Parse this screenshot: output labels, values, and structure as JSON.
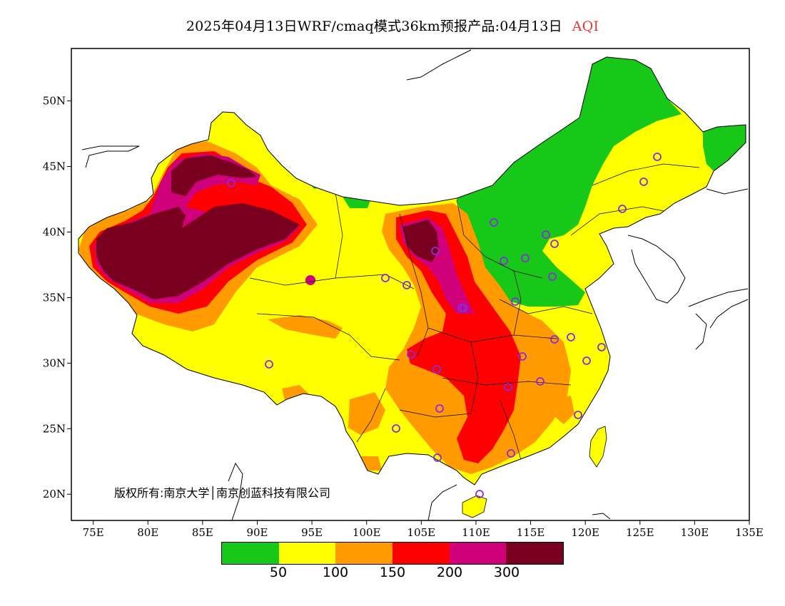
{
  "title": {
    "text": "2025年04月13日WRF/cmaq模式36km预报产品:04月13日",
    "product": "AQI",
    "product_color": "#e03a3a"
  },
  "axes": {
    "x_ticks": [
      "75E",
      "80E",
      "85E",
      "90E",
      "95E",
      "100E",
      "105E",
      "110E",
      "115E",
      "120E",
      "125E",
      "130E",
      "135E"
    ],
    "y_ticks": [
      "50N",
      "45N",
      "40N",
      "35N",
      "30N",
      "25N",
      "20N"
    ],
    "lon_range": [
      73,
      135
    ],
    "lat_range": [
      18,
      54
    ]
  },
  "copyright": "版权所有:南京大学│南京创蓝科技有限公司",
  "legend": {
    "colors": [
      "#18c818",
      "#ffff00",
      "#ff9a00",
      "#ff0000",
      "#d0007a",
      "#7a0020"
    ],
    "labels": [
      "50",
      "100",
      "150",
      "200",
      "300"
    ]
  },
  "colors": {
    "land_default": "#ffff00",
    "sea": "#ffffff",
    "station_marker": "#8a2be2"
  }
}
